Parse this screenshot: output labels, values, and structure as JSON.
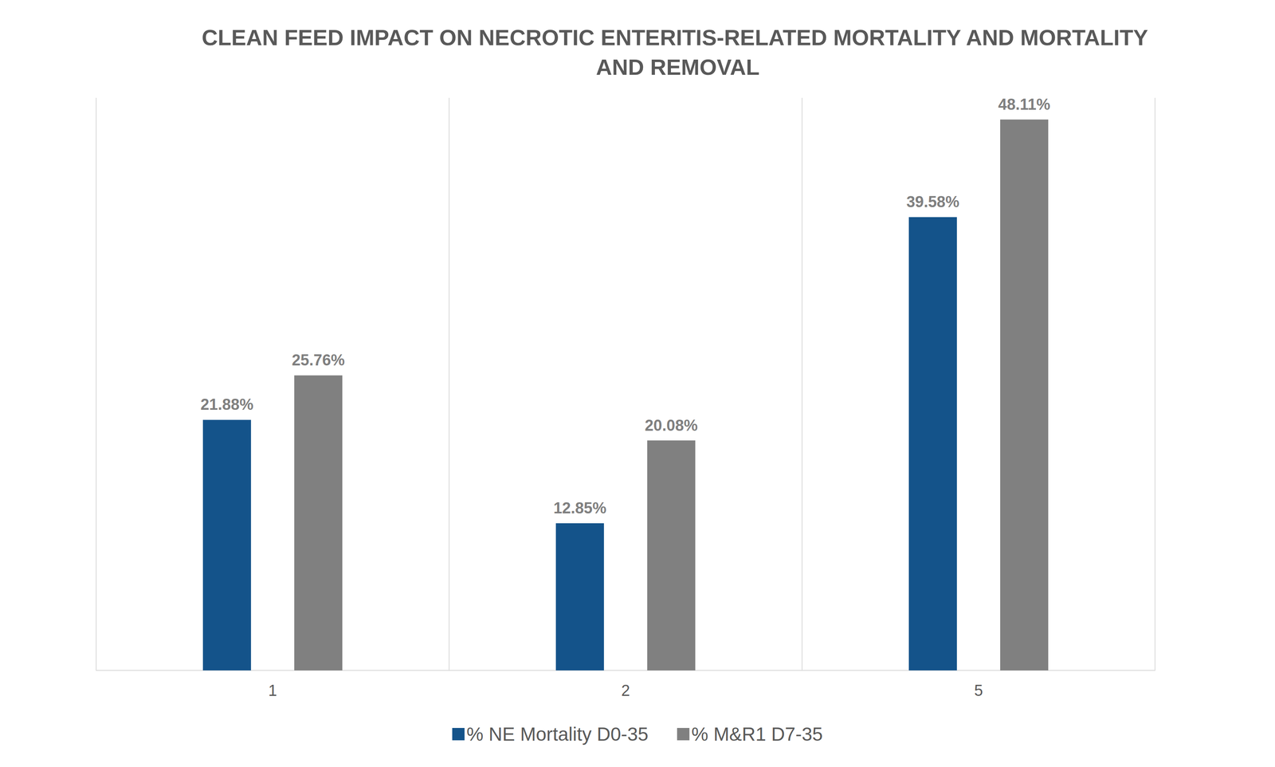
{
  "chart_data": {
    "type": "bar",
    "title": "CLEAN FEED IMPACT ON NECROTIC ENTERITIS-RELATED MORTALITY AND MORTALITY AND REMOVAL",
    "categories": [
      "1",
      "2",
      "5"
    ],
    "series": [
      {
        "name": "% NE Mortality D0-35",
        "color": "#14538a",
        "values": [
          21.88,
          12.85,
          39.58
        ],
        "value_labels": [
          "21.88%",
          "12.85%",
          "39.58%"
        ]
      },
      {
        "name": "% M&R1 D7-35",
        "color": "#808080",
        "values": [
          25.76,
          20.08,
          48.11
        ],
        "value_labels": [
          "25.76%",
          "20.08%",
          "48.11%"
        ]
      }
    ],
    "ylim": [
      0,
      50
    ],
    "grid": true,
    "legend": "bottom",
    "data_labels": true,
    "tick_labels": "x"
  }
}
